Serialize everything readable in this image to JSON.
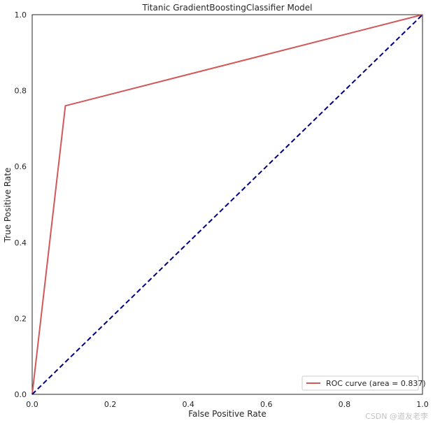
{
  "chart_data": {
    "type": "line",
    "title": "Titanic GradientBoostingClassifier Model",
    "xlabel": "False Positive Rate",
    "ylabel": "True Positive Rate",
    "xlim": [
      0,
      1
    ],
    "ylim": [
      0,
      1
    ],
    "xticks": [
      "0.0",
      "0.2",
      "0.4",
      "0.6",
      "0.8",
      "1.0"
    ],
    "yticks": [
      "0.0",
      "0.2",
      "0.4",
      "0.6",
      "0.8",
      "1.0"
    ],
    "grid": false,
    "legend_position": "lower-right",
    "series": [
      {
        "name": "ROC curve (area = 0.837)",
        "color": "#d15858",
        "style": "solid",
        "x": [
          0.0,
          0.085,
          1.0
        ],
        "y": [
          0.0,
          0.76,
          1.0
        ]
      },
      {
        "color": "#000080",
        "style": "dashed",
        "x": [
          0.0,
          1.0
        ],
        "y": [
          0.0,
          1.0
        ]
      }
    ]
  },
  "watermark": "CSDN @道友老李"
}
